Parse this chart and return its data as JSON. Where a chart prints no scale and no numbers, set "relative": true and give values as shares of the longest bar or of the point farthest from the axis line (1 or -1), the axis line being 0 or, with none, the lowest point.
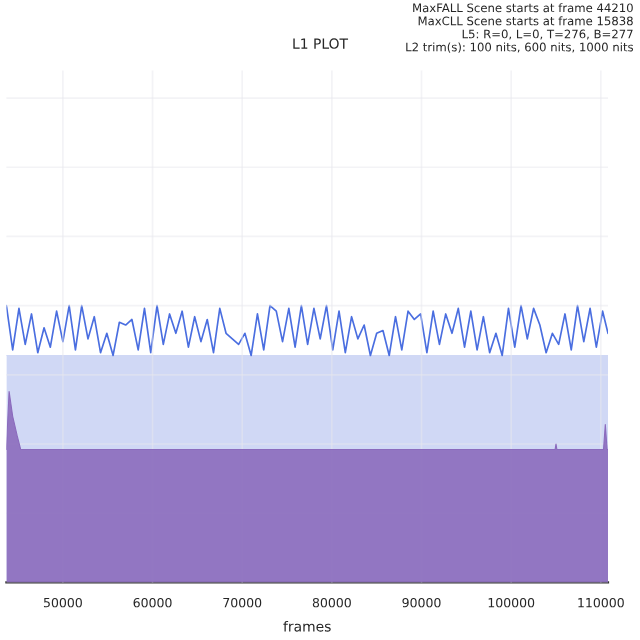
{
  "chart_data": {
    "type": "area",
    "title": "L1 PLOT",
    "xlabel": "frames",
    "relative": true,
    "grid": true,
    "legend": false,
    "tick_labels": "x",
    "annotations": [
      "MaxFALL Scene starts at frame 44210",
      "MaxCLL Scene starts at frame 15838",
      "L5: R=0, L=0, T=276, B=277",
      "L2 trim(s): 100 nits, 600 nits, 1000 nits"
    ],
    "xlim": [
      43700,
      110800
    ],
    "xticks": [
      50000,
      60000,
      70000,
      80000,
      90000,
      100000,
      110000
    ],
    "series": [
      {
        "color": "#d0d8f5",
        "x": [
          43700,
          110800
        ],
        "values": [
          0.82,
          0.82
        ]
      },
      {
        "type": "line",
        "color": "#4a6ee0",
        "x": [
          43700,
          44400,
          45100,
          45800,
          46500,
          47200,
          47900,
          48600,
          49300,
          50000,
          50700,
          51400,
          52100,
          52800,
          53500,
          54200,
          54900,
          55600,
          56300,
          57000,
          57700,
          58400,
          59100,
          59800,
          60500,
          61200,
          61900,
          62600,
          63300,
          64000,
          64700,
          65400,
          66100,
          66800,
          67500,
          68200,
          68900,
          69600,
          70300,
          71000,
          71700,
          72400,
          73100,
          73800,
          74500,
          75200,
          75900,
          76600,
          77300,
          78000,
          78700,
          79400,
          80100,
          80800,
          81500,
          82200,
          82900,
          83600,
          84300,
          85000,
          85700,
          86400,
          87100,
          87800,
          88500,
          89200,
          89900,
          90600,
          91300,
          92000,
          92700,
          93400,
          94100,
          94800,
          95500,
          96200,
          96900,
          97600,
          98300,
          99000,
          99700,
          100400,
          101100,
          101800,
          102500,
          103200,
          103900,
          104600,
          105300,
          106000,
          106700,
          107400,
          108100,
          108800,
          109500,
          110200,
          110800
        ],
        "values": [
          1.0,
          0.84,
          0.99,
          0.86,
          0.97,
          0.83,
          0.92,
          0.85,
          0.98,
          0.87,
          1.0,
          0.84,
          1.0,
          0.88,
          0.96,
          0.83,
          0.9,
          0.82,
          0.94,
          0.93,
          0.95,
          0.84,
          0.99,
          0.83,
          1.0,
          0.86,
          0.97,
          0.9,
          0.98,
          0.85,
          0.96,
          0.87,
          0.95,
          0.83,
          0.99,
          0.9,
          0.88,
          0.86,
          0.9,
          0.82,
          0.97,
          0.84,
          1.0,
          0.98,
          0.87,
          0.99,
          0.85,
          1.0,
          0.86,
          0.99,
          0.88,
          1.0,
          0.84,
          0.98,
          0.83,
          0.96,
          0.88,
          0.93,
          0.82,
          0.9,
          0.91,
          0.82,
          0.96,
          0.84,
          0.98,
          0.95,
          0.97,
          0.83,
          0.98,
          0.86,
          0.97,
          0.9,
          0.99,
          0.85,
          0.98,
          0.84,
          0.96,
          0.83,
          0.9,
          0.82,
          0.99,
          0.85,
          1.0,
          0.88,
          0.99,
          0.93,
          0.83,
          0.9,
          0.86,
          0.97,
          0.84,
          1.0,
          0.87,
          0.99,
          0.85,
          0.98,
          0.9
        ]
      },
      {
        "color": "#8b6bbd",
        "x": [
          43700,
          44000,
          44400,
          44900,
          45300,
          104900,
          105000,
          105100,
          110300,
          110500,
          110700,
          110800
        ],
        "values": [
          0.48,
          0.69,
          0.6,
          0.53,
          0.48,
          0.48,
          0.5,
          0.48,
          0.48,
          0.57,
          0.48,
          0.48
        ]
      }
    ]
  }
}
